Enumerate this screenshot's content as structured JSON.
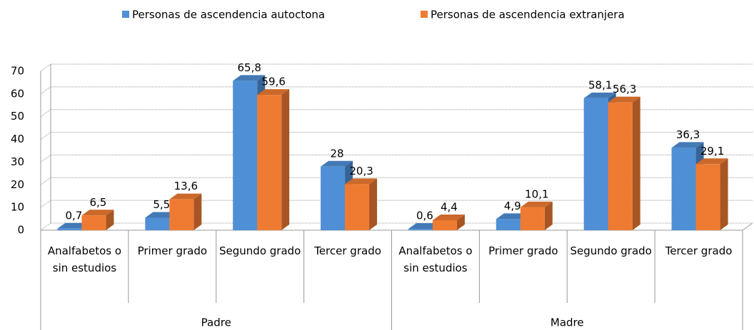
{
  "chart_data": {
    "type": "bar3d",
    "categories": [
      "Analfabetos o sin estudios",
      "Primer grado",
      "Segundo grado",
      "Tercer grado",
      "Analfabetos o sin estudios",
      "Primer grado",
      "Segundo grado",
      "Tercer grado"
    ],
    "groups": [
      "Padre",
      "Madre"
    ],
    "series": [
      {
        "name": "Personas de ascendencia autoctona",
        "color": "#4f8fd6",
        "values": [
          0.7,
          5.5,
          65.8,
          28,
          0.6,
          4.9,
          58.1,
          36.3
        ],
        "value_labels": [
          "0,7",
          "5,5",
          "65,8",
          "28",
          "0,6",
          "4,9",
          "58,1",
          "36,3"
        ]
      },
      {
        "name": "Personas de ascendencia extranjera",
        "color": "#ef7b32",
        "values": [
          6.5,
          13.6,
          59.6,
          20.3,
          4.4,
          10.1,
          56.3,
          29.1
        ],
        "value_labels": [
          "6,5",
          "13,6",
          "59,6",
          "20,3",
          "4,4",
          "10,1",
          "56,3",
          "29,1"
        ]
      }
    ],
    "ylim": [
      0,
      70
    ],
    "yticks": [
      0,
      10,
      20,
      30,
      40,
      50,
      60,
      70
    ],
    "grid": true,
    "legend": "top"
  }
}
